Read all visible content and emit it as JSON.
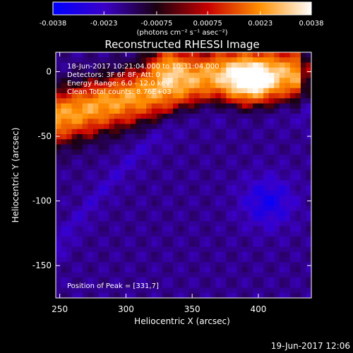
{
  "colorbar": {
    "tick_labels": [
      "-0.0038",
      "-0.0023",
      "-0.00075",
      "0.00075",
      "0.0023",
      "0.0038"
    ],
    "tick_values": [
      -0.0038,
      -0.0023,
      -0.00075,
      0.00075,
      0.0023,
      0.0038
    ],
    "units_label": "(photons cm⁻² s⁻¹ asec⁻²)",
    "min": -0.0038,
    "max": 0.0038,
    "colors": [
      "#0000ff",
      "#3b00c8",
      "#1a0010",
      "#c80000",
      "#ff9000",
      "#ffffff"
    ]
  },
  "chart_data": {
    "type": "heatmap",
    "title": "Reconstructed RHESSI Image",
    "xlabel": "Heliocentric X (arcsec)",
    "ylabel": "Heliocentric Y (arcsec)",
    "xlim": [
      247,
      440
    ],
    "ylim": [
      -175,
      15
    ],
    "x_ticks": [
      250,
      300,
      350,
      400
    ],
    "y_ticks": [
      0,
      -50,
      -100,
      -150
    ],
    "x_tick_labels": [
      "250",
      "300",
      "350",
      "400"
    ],
    "y_tick_labels": [
      "0",
      "-50",
      "-100",
      "-150"
    ],
    "peak_position": [
      331,
      7
    ],
    "annotations": [
      "18-Jun-2017 10:21:04.000 to 10:31:04.000",
      "Detectors: 3F 6F 8F, Att: 0",
      "Energy Range: 6.0 - 12.0 keV",
      "Clean    Total counts: 8.76E+03"
    ],
    "peak_label": "Position of Peak = [331,7]"
  },
  "footer": {
    "timestamp": "19-Jun-2017 12:06"
  }
}
